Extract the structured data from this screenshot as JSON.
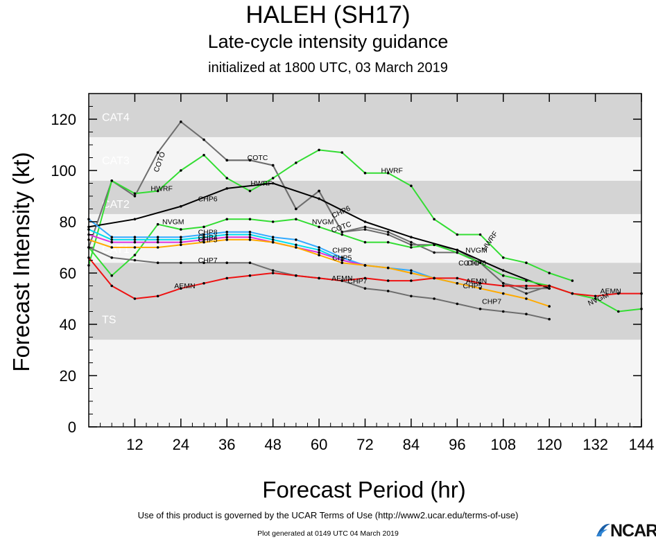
{
  "titles": {
    "main": "HALEH (SH17)",
    "subtitle": "Late-cycle intensity guidance",
    "init": "initialized at 1800 UTC, 03 March 2019"
  },
  "footer": {
    "terms": "Use of this product is governed by the UCAR Terms of Use (http://www2.ucar.edu/terms-of-use)",
    "generated": "Plot generated at 0149 UTC   04 March 2019",
    "logo": "NCAR"
  },
  "chart_data": {
    "type": "line",
    "xlabel": "Forecast Period (hr)",
    "ylabel": "Forecast Intensity (kt)",
    "xlim": [
      0,
      144
    ],
    "ylim": [
      0,
      130
    ],
    "xticks": [
      12,
      24,
      36,
      48,
      60,
      72,
      84,
      96,
      108,
      120,
      132,
      144
    ],
    "yticks": [
      0,
      20,
      40,
      60,
      80,
      100,
      120
    ],
    "bands": [
      {
        "label": "TS",
        "from": 34,
        "to": 64,
        "color": "#d4d4d4"
      },
      {
        "label": "CAT1",
        "from": 64,
        "to": 83,
        "color": "#f5f5f5"
      },
      {
        "label": "CAT2",
        "from": 83,
        "to": 96,
        "color": "#d4d4d4"
      },
      {
        "label": "CAT3",
        "from": 96,
        "to": 113,
        "color": "#f5f5f5"
      },
      {
        "label": "CAT4",
        "from": 113,
        "to": 137,
        "color": "#d4d4d4"
      }
    ],
    "series": [
      {
        "name": "COTO",
        "color": "#6e6e6e",
        "label_at": [
          [
            19,
            103,
            -70
          ]
        ],
        "x": [
          0,
          6,
          12,
          18,
          24,
          30,
          36,
          42,
          48,
          54,
          60,
          66,
          72,
          78,
          84,
          90,
          96,
          102,
          108,
          114,
          120
        ],
        "y": [
          70,
          96,
          90,
          107,
          119,
          112,
          104,
          104,
          102,
          85,
          92,
          76,
          78,
          76,
          72,
          68,
          68,
          64,
          56,
          52,
          55
        ]
      },
      {
        "name": "COTC",
        "color": "#6e6e6e",
        "label_at": [
          [
            44,
            104,
            0
          ],
          [
            66,
            77,
            -20
          ],
          [
            99,
            63,
            0
          ]
        ],
        "x": [
          36,
          42,
          48,
          54,
          60,
          66,
          72,
          78,
          84,
          90,
          96,
          102,
          108,
          114,
          120
        ],
        "y": [
          104,
          104,
          102,
          85,
          92,
          76,
          77,
          75,
          71,
          71,
          69,
          64,
          56,
          54,
          54
        ]
      },
      {
        "name": "HWRF",
        "color": "#33dd33",
        "label_at": [
          [
            19,
            92,
            0
          ],
          [
            45,
            94,
            0
          ],
          [
            79,
            99,
            0
          ],
          [
            105,
            72,
            -55
          ]
        ],
        "x": [
          0,
          6,
          12,
          18,
          24,
          30,
          36,
          42,
          48,
          54,
          60,
          66,
          72,
          78,
          84,
          90,
          96,
          102,
          108,
          114,
          120,
          126
        ],
        "y": [
          63,
          96,
          91,
          92,
          100,
          106,
          97,
          92,
          97,
          103,
          108,
          107,
          99,
          99,
          94,
          81,
          75,
          75,
          66,
          64,
          60,
          57
        ]
      },
      {
        "name": "CHP6",
        "color": "#000000",
        "label_at": [
          [
            31,
            88,
            0
          ],
          [
            66,
            83,
            -25
          ],
          [
            101,
            63,
            0
          ]
        ],
        "x": [
          0,
          12,
          24,
          36,
          48,
          60,
          72,
          84,
          96,
          108,
          120
        ],
        "y": [
          78,
          81,
          86,
          93,
          95,
          89,
          80,
          74,
          69,
          61,
          54
        ]
      },
      {
        "name": "NVGM",
        "color": "#33dd33",
        "label_at": [
          [
            22,
            79,
            0
          ],
          [
            61,
            79,
            0
          ],
          [
            101,
            68,
            0
          ],
          [
            133,
            49,
            -25
          ]
        ],
        "x": [
          0,
          6,
          12,
          18,
          24,
          30,
          36,
          42,
          48,
          54,
          60,
          66,
          72,
          78,
          84,
          90,
          96,
          102,
          108,
          114,
          120,
          126,
          132,
          138,
          144
        ],
        "y": [
          70,
          59,
          67,
          79,
          77,
          78,
          81,
          81,
          80,
          81,
          78,
          75,
          72,
          72,
          70,
          71,
          68,
          64,
          59,
          57,
          55,
          52,
          50,
          45,
          46
        ]
      },
      {
        "name": "CHP8",
        "color": "#33aaff",
        "label_at": [
          [
            31,
            75,
            0
          ]
        ],
        "x": [
          0,
          6,
          12,
          18,
          24,
          30,
          36,
          42,
          48,
          54,
          60,
          66,
          72,
          78,
          84,
          90,
          96
        ],
        "y": [
          81,
          74,
          74,
          74,
          74,
          75,
          76,
          76,
          74,
          73,
          70,
          66,
          63,
          62,
          61,
          58,
          56
        ]
      },
      {
        "name": "CHP9",
        "color": "#00ddee",
        "label_at": [
          [
            66,
            68,
            0
          ]
        ],
        "x": [
          0,
          6,
          12,
          18,
          24,
          30,
          36,
          42,
          48,
          54,
          60,
          66,
          72
        ],
        "y": [
          77,
          73,
          73,
          73,
          73,
          74,
          75,
          75,
          73,
          71,
          69,
          65,
          63
        ]
      },
      {
        "name": "CHP4",
        "color": "#dd33dd",
        "label_at": [
          [
            31,
            73,
            0
          ]
        ],
        "x": [
          0,
          6,
          12,
          18,
          24,
          30,
          36,
          42,
          48,
          54,
          60,
          66,
          72
        ],
        "y": [
          75,
          72,
          72,
          72,
          72,
          73,
          74,
          74,
          72,
          70,
          68,
          65,
          63
        ]
      },
      {
        "name": "CHP5",
        "color": "#ffaa00",
        "label_at": [
          [
            31,
            72,
            0
          ],
          [
            66,
            65,
            0
          ],
          [
            100,
            54,
            0
          ]
        ],
        "x": [
          0,
          6,
          12,
          18,
          24,
          30,
          36,
          42,
          48,
          54,
          60,
          66,
          72,
          78,
          84,
          90,
          96,
          102,
          108,
          114,
          120
        ],
        "y": [
          73,
          70,
          70,
          70,
          71,
          72,
          73,
          73,
          72,
          70,
          67,
          64,
          63,
          62,
          60,
          58,
          56,
          54,
          52,
          50,
          47
        ]
      },
      {
        "name": "CHP7",
        "color": "#6e6e6e",
        "label_at": [
          [
            31,
            64,
            0
          ],
          [
            70,
            56,
            0
          ],
          [
            105,
            48,
            0
          ]
        ],
        "x": [
          0,
          6,
          12,
          18,
          24,
          30,
          36,
          42,
          48,
          54,
          60,
          66,
          72,
          78,
          84,
          90,
          96,
          102,
          108,
          114,
          120
        ],
        "y": [
          70,
          66,
          65,
          64,
          64,
          64,
          64,
          64,
          61,
          59,
          58,
          57,
          54,
          53,
          51,
          50,
          48,
          46,
          45,
          44,
          42
        ]
      },
      {
        "name": "AEMN",
        "color": "#ee1111",
        "label_at": [
          [
            25,
            54,
            0
          ],
          [
            66,
            57,
            0
          ],
          [
            101,
            56,
            0
          ],
          [
            136,
            52,
            0
          ]
        ],
        "x": [
          0,
          6,
          12,
          18,
          24,
          30,
          36,
          42,
          48,
          54,
          60,
          66,
          72,
          78,
          84,
          90,
          96,
          102,
          108,
          114,
          120,
          126,
          132,
          138,
          144
        ],
        "y": [
          66,
          55,
          50,
          51,
          54,
          56,
          58,
          59,
          60,
          59,
          58,
          57,
          58,
          57,
          57,
          58,
          58,
          56,
          55,
          55,
          55,
          52,
          51,
          52,
          52
        ]
      }
    ]
  }
}
